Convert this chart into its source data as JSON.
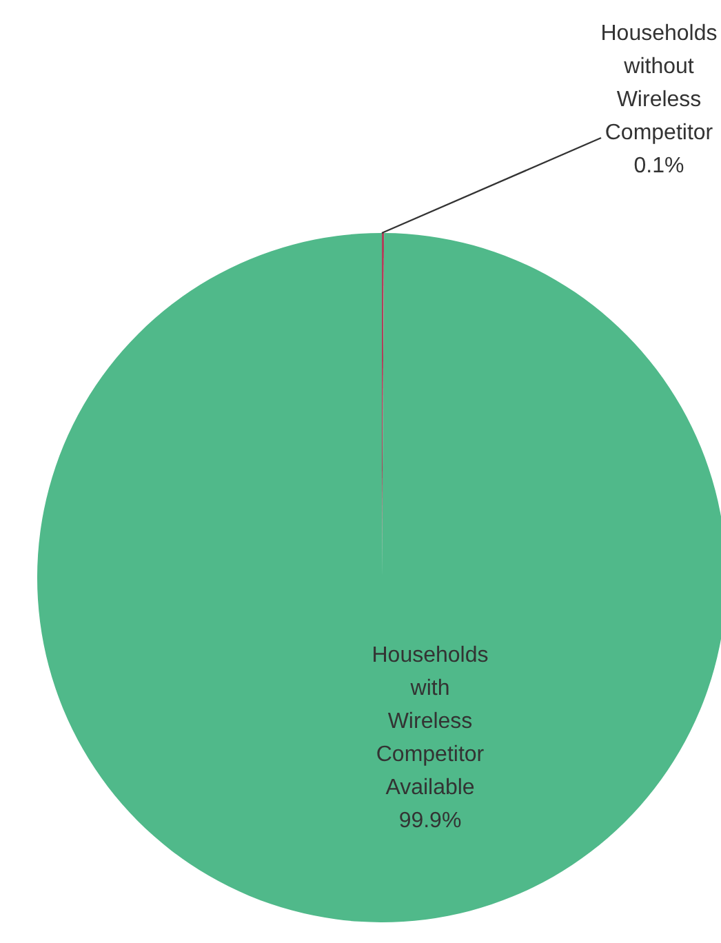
{
  "chart_data": {
    "type": "pie",
    "categories": [
      "Households without Wireless Competitor",
      "Households with Wireless Competitor Available"
    ],
    "values": [
      0.1,
      99.9
    ],
    "value_labels": [
      "0.1%",
      "99.9%"
    ],
    "colors": [
      "#b0405a",
      "#50b98a"
    ]
  }
}
